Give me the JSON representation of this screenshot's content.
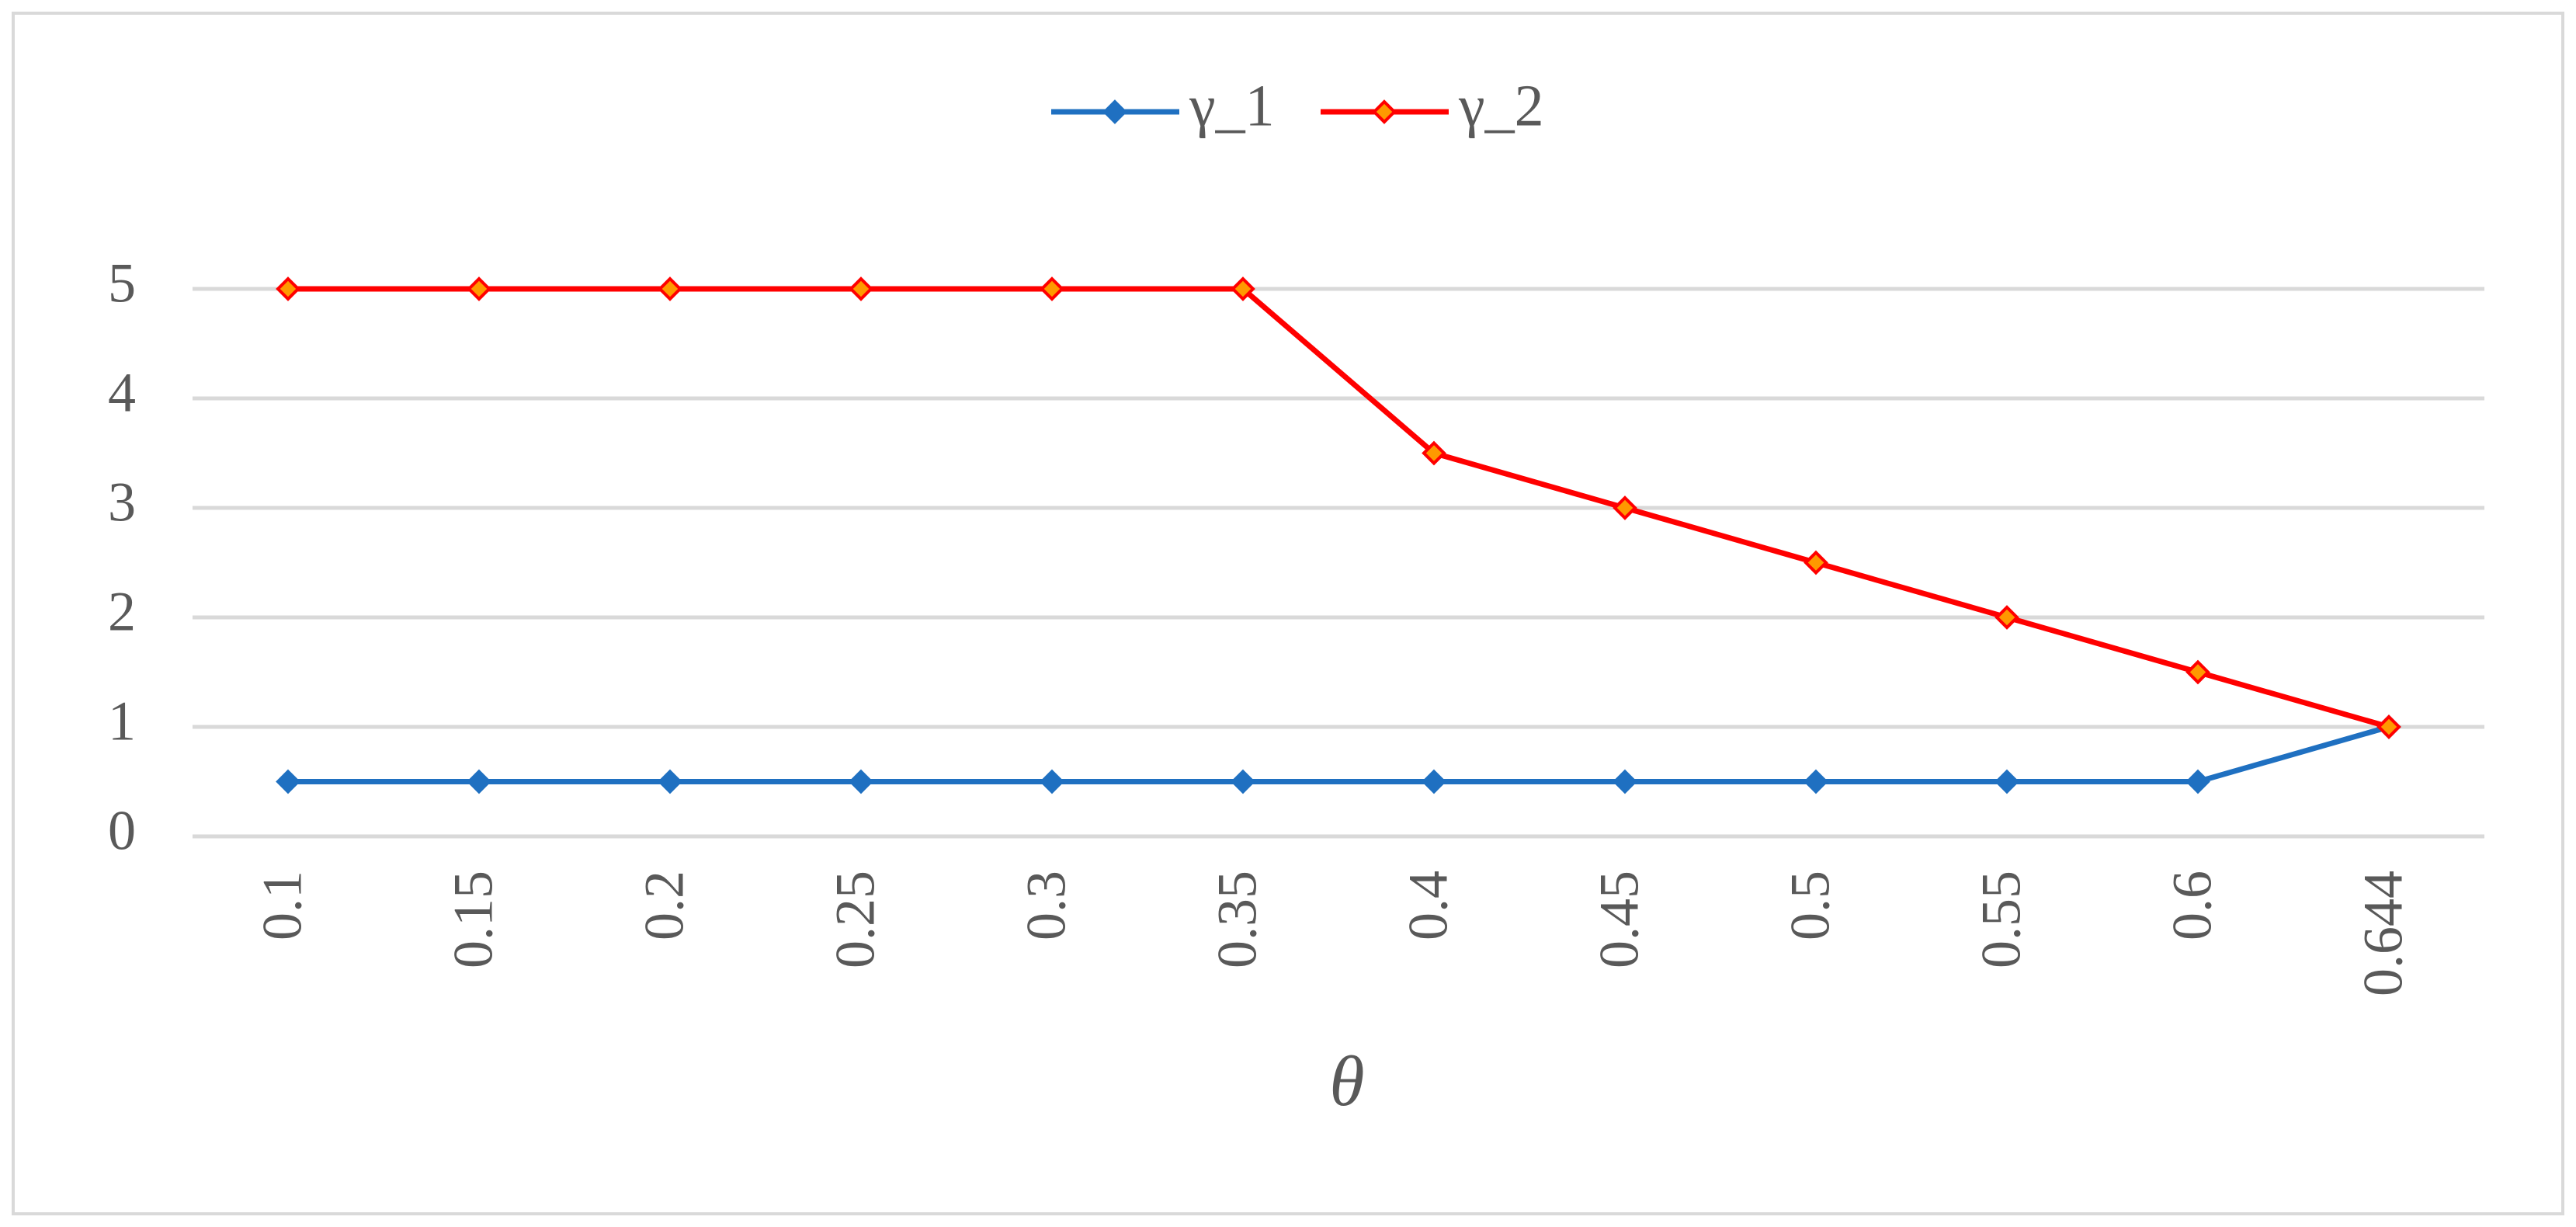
{
  "chart_data": {
    "type": "line",
    "x_label": "θ",
    "categories": [
      "0.1",
      "0.15",
      "0.2",
      "0.25",
      "0.3",
      "0.35",
      "0.4",
      "0.45",
      "0.5",
      "0.55",
      "0.6",
      "0.644"
    ],
    "series": [
      {
        "name": "γ_1",
        "color": "#1f70c1",
        "values": [
          0.5,
          0.5,
          0.5,
          0.5,
          0.5,
          0.5,
          0.5,
          0.5,
          0.5,
          0.5,
          0.5,
          1
        ]
      },
      {
        "name": "γ_2",
        "color": "#ff0000",
        "values": [
          5,
          5,
          5,
          5,
          5,
          5,
          3.5,
          3,
          2.5,
          2,
          1.5,
          1
        ]
      }
    ],
    "ylim": [
      0,
      5
    ],
    "yticks": [
      0,
      1,
      2,
      3,
      4,
      5
    ],
    "grid": true,
    "legend": "top"
  }
}
